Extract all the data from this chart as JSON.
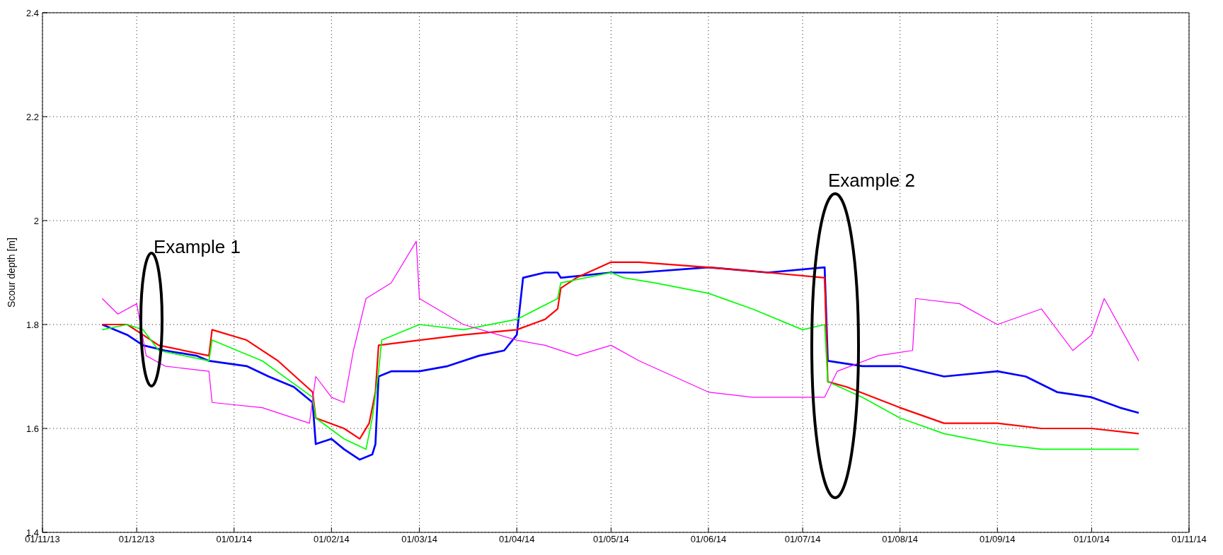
{
  "chart_data": {
    "type": "line",
    "ylabel": "Scour depth [m]",
    "ylim": [
      1.4,
      2.4
    ],
    "yticks": [
      1.4,
      1.6,
      1.8,
      2,
      2.2,
      2.4
    ],
    "xlim": [
      "2013-11-01",
      "2014-11-01"
    ],
    "xticks": [
      {
        "value": "2013-11-01",
        "label": "01/11/13"
      },
      {
        "value": "2013-12-01",
        "label": "01/12/13"
      },
      {
        "value": "2014-01-01",
        "label": "01/01/14"
      },
      {
        "value": "2014-02-01",
        "label": "01/02/14"
      },
      {
        "value": "2014-03-01",
        "label": "01/03/14"
      },
      {
        "value": "2014-04-01",
        "label": "01/04/14"
      },
      {
        "value": "2014-05-01",
        "label": "01/05/14"
      },
      {
        "value": "2014-06-01",
        "label": "01/06/14"
      },
      {
        "value": "2014-07-01",
        "label": "01/07/14"
      },
      {
        "value": "2014-08-01",
        "label": "01/08/14"
      },
      {
        "value": "2014-09-01",
        "label": "01/09/14"
      },
      {
        "value": "2014-10-01",
        "label": "01/10/14"
      },
      {
        "value": "2014-11-01",
        "label": "01/11/14"
      }
    ],
    "grid": true,
    "marker": "none",
    "line_style": "solid",
    "annotations": [
      "Example 1",
      "Example 2"
    ],
    "series": [
      {
        "color": "#0000ff",
        "x": [
          "2013-11-20",
          "2013-11-28",
          "2013-12-03",
          "2013-12-10",
          "2013-12-20",
          "2013-12-24",
          "2014-01-05",
          "2014-01-12",
          "2014-01-20",
          "2014-01-26",
          "2014-01-27",
          "2014-02-01",
          "2014-02-05",
          "2014-02-10",
          "2014-02-14",
          "2014-02-15",
          "2014-02-16",
          "2014-02-20",
          "2014-03-01",
          "2014-03-10",
          "2014-03-20",
          "2014-03-28",
          "2014-04-01",
          "2014-04-03",
          "2014-04-10",
          "2014-04-14",
          "2014-04-15",
          "2014-05-01",
          "2014-05-10",
          "2014-06-01",
          "2014-06-20",
          "2014-07-08",
          "2014-07-09",
          "2014-07-20",
          "2014-08-01",
          "2014-08-15",
          "2014-09-01",
          "2014-09-10",
          "2014-09-20",
          "2014-10-01",
          "2014-10-10",
          "2014-10-16"
        ],
        "values": [
          1.8,
          1.78,
          1.76,
          1.75,
          1.74,
          1.73,
          1.72,
          1.7,
          1.68,
          1.65,
          1.57,
          1.58,
          1.56,
          1.54,
          1.55,
          1.57,
          1.7,
          1.71,
          1.71,
          1.72,
          1.74,
          1.75,
          1.78,
          1.89,
          1.9,
          1.9,
          1.89,
          1.9,
          1.9,
          1.91,
          1.9,
          1.91,
          1.73,
          1.72,
          1.72,
          1.7,
          1.71,
          1.7,
          1.67,
          1.66,
          1.64,
          1.63
        ]
      },
      {
        "color": "#ff0000",
        "x": [
          "2013-11-20",
          "2013-11-28",
          "2013-12-03",
          "2013-12-08",
          "2013-12-24",
          "2013-12-25",
          "2014-01-05",
          "2014-01-15",
          "2014-01-26",
          "2014-01-27",
          "2014-02-05",
          "2014-02-10",
          "2014-02-13",
          "2014-02-15",
          "2014-02-16",
          "2014-03-01",
          "2014-03-15",
          "2014-04-01",
          "2014-04-10",
          "2014-04-14",
          "2014-04-15",
          "2014-04-20",
          "2014-05-01",
          "2014-05-10",
          "2014-06-01",
          "2014-06-20",
          "2014-07-08",
          "2014-07-09",
          "2014-07-15",
          "2014-08-01",
          "2014-08-15",
          "2014-09-01",
          "2014-09-15",
          "2014-10-01",
          "2014-10-16"
        ],
        "values": [
          1.8,
          1.8,
          1.78,
          1.76,
          1.74,
          1.79,
          1.77,
          1.73,
          1.67,
          1.62,
          1.6,
          1.58,
          1.61,
          1.67,
          1.76,
          1.77,
          1.78,
          1.79,
          1.81,
          1.83,
          1.87,
          1.89,
          1.92,
          1.92,
          1.91,
          1.9,
          1.89,
          1.69,
          1.68,
          1.64,
          1.61,
          1.61,
          1.6,
          1.6,
          1.59
        ]
      },
      {
        "color": "#00ff00",
        "x": [
          "2013-11-20",
          "2013-11-28",
          "2013-12-03",
          "2013-12-08",
          "2013-12-24",
          "2013-12-25",
          "2014-01-10",
          "2014-01-26",
          "2014-01-27",
          "2014-02-05",
          "2014-02-12",
          "2014-02-14",
          "2014-02-16",
          "2014-02-17",
          "2014-03-01",
          "2014-03-15",
          "2014-04-01",
          "2014-04-14",
          "2014-04-15",
          "2014-05-01",
          "2014-05-05",
          "2014-05-15",
          "2014-06-01",
          "2014-06-15",
          "2014-07-01",
          "2014-07-08",
          "2014-07-09",
          "2014-07-20",
          "2014-08-01",
          "2014-08-15",
          "2014-09-01",
          "2014-09-15",
          "2014-10-01",
          "2014-10-16"
        ],
        "values": [
          1.79,
          1.8,
          1.79,
          1.75,
          1.73,
          1.77,
          1.73,
          1.66,
          1.62,
          1.58,
          1.56,
          1.62,
          1.71,
          1.77,
          1.8,
          1.79,
          1.81,
          1.85,
          1.88,
          1.9,
          1.89,
          1.88,
          1.86,
          1.83,
          1.79,
          1.8,
          1.69,
          1.66,
          1.62,
          1.59,
          1.57,
          1.56,
          1.56,
          1.56
        ]
      },
      {
        "color": "#ff00ff",
        "x": [
          "2013-11-20",
          "2013-11-25",
          "2013-12-01",
          "2013-12-04",
          "2013-12-10",
          "2013-12-24",
          "2013-12-25",
          "2014-01-10",
          "2014-01-25",
          "2014-01-27",
          "2014-02-01",
          "2014-02-05",
          "2014-02-08",
          "2014-02-12",
          "2014-02-20",
          "2014-02-28",
          "2014-03-01",
          "2014-03-15",
          "2014-04-01",
          "2014-04-10",
          "2014-04-20",
          "2014-05-01",
          "2014-05-10",
          "2014-06-01",
          "2014-06-15",
          "2014-07-01",
          "2014-07-08",
          "2014-07-12",
          "2014-07-25",
          "2014-08-05",
          "2014-08-06",
          "2014-08-20",
          "2014-09-01",
          "2014-09-15",
          "2014-09-25",
          "2014-10-01",
          "2014-10-05",
          "2014-10-16"
        ],
        "values": [
          1.85,
          1.82,
          1.84,
          1.74,
          1.72,
          1.71,
          1.65,
          1.64,
          1.61,
          1.7,
          1.66,
          1.65,
          1.75,
          1.85,
          1.88,
          1.96,
          1.85,
          1.8,
          1.77,
          1.76,
          1.74,
          1.76,
          1.73,
          1.67,
          1.66,
          1.66,
          1.66,
          1.71,
          1.74,
          1.75,
          1.85,
          1.84,
          1.8,
          1.83,
          1.75,
          1.78,
          1.85,
          1.73
        ]
      }
    ]
  }
}
